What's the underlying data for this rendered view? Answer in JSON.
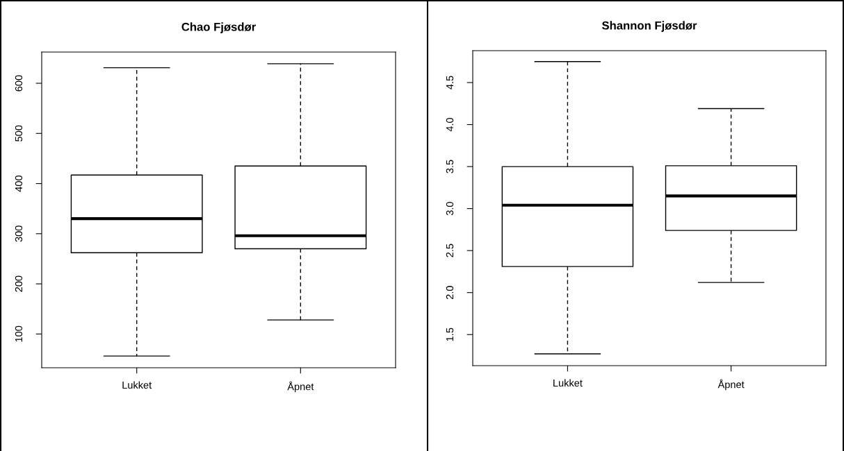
{
  "chart_data": [
    {
      "type": "box",
      "title": "Chao Fjøsdør",
      "categories": [
        "Lukket",
        "Åpnet"
      ],
      "boxes": [
        {
          "low": 56,
          "q1": 262,
          "median": 330,
          "q3": 417,
          "high": 631
        },
        {
          "low": 128,
          "q1": 270,
          "median": 296,
          "q3": 435,
          "high": 639
        }
      ],
      "ylim": [
        32.7,
        662.3
      ],
      "yticks": [
        100,
        200,
        300,
        400,
        500,
        600
      ],
      "grid": false
    },
    {
      "type": "box",
      "title": "Shannon Fjøsdør",
      "categories": [
        "Lukket",
        "Åpnet"
      ],
      "boxes": [
        {
          "low": 1.27,
          "q1": 2.31,
          "median": 3.04,
          "q3": 3.5,
          "high": 4.75
        },
        {
          "low": 2.12,
          "q1": 2.74,
          "median": 3.15,
          "q3": 3.51,
          "high": 4.19
        }
      ],
      "ylim": [
        1.13,
        4.88
      ],
      "yticks": [
        {
          "value": 1.5,
          "label": "1.5"
        },
        {
          "value": 2.0,
          "label": "2.0"
        },
        {
          "value": 2.5,
          "label": "2.5"
        },
        {
          "value": 3.0,
          "label": "3.0"
        },
        {
          "value": 3.5,
          "label": "3.5"
        },
        {
          "value": 4.0,
          "label": "4.0"
        },
        {
          "value": 4.5,
          "label": "4.5"
        }
      ],
      "grid": false
    }
  ]
}
